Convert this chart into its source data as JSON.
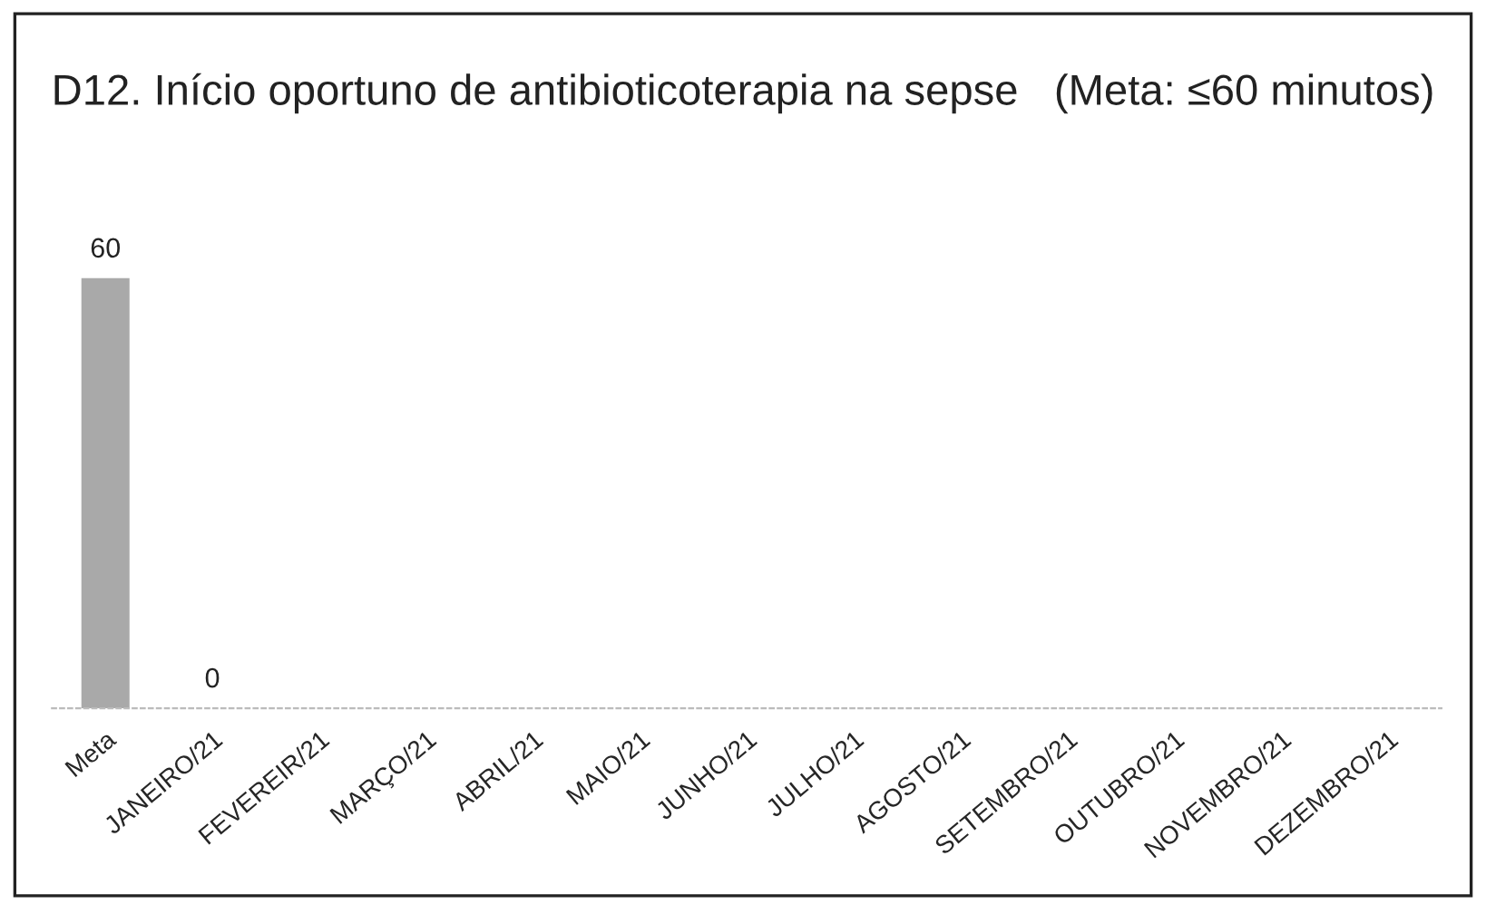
{
  "chart_data": {
    "type": "bar",
    "title": "D12. Início oportuno de antibioticoterapia na sepse   (Meta: ≤60 minutos)",
    "categories": [
      "Meta",
      "JANEIRO/21",
      "FEVEREIR/21",
      "MARÇO/21",
      "ABRIL/21",
      "MAIO/21",
      "JUNHO/21",
      "JULHO/21",
      "AGOSTO/21",
      "SETEMBRO/21",
      "OUTUBRO/21",
      "NOVEMBRO/21",
      "DEZEMBRO/21"
    ],
    "values": [
      60,
      0,
      null,
      null,
      null,
      null,
      null,
      null,
      null,
      null,
      null,
      null,
      null
    ],
    "color": "#a9a9a9",
    "data_labels": true,
    "grid": false,
    "legend": false
  }
}
